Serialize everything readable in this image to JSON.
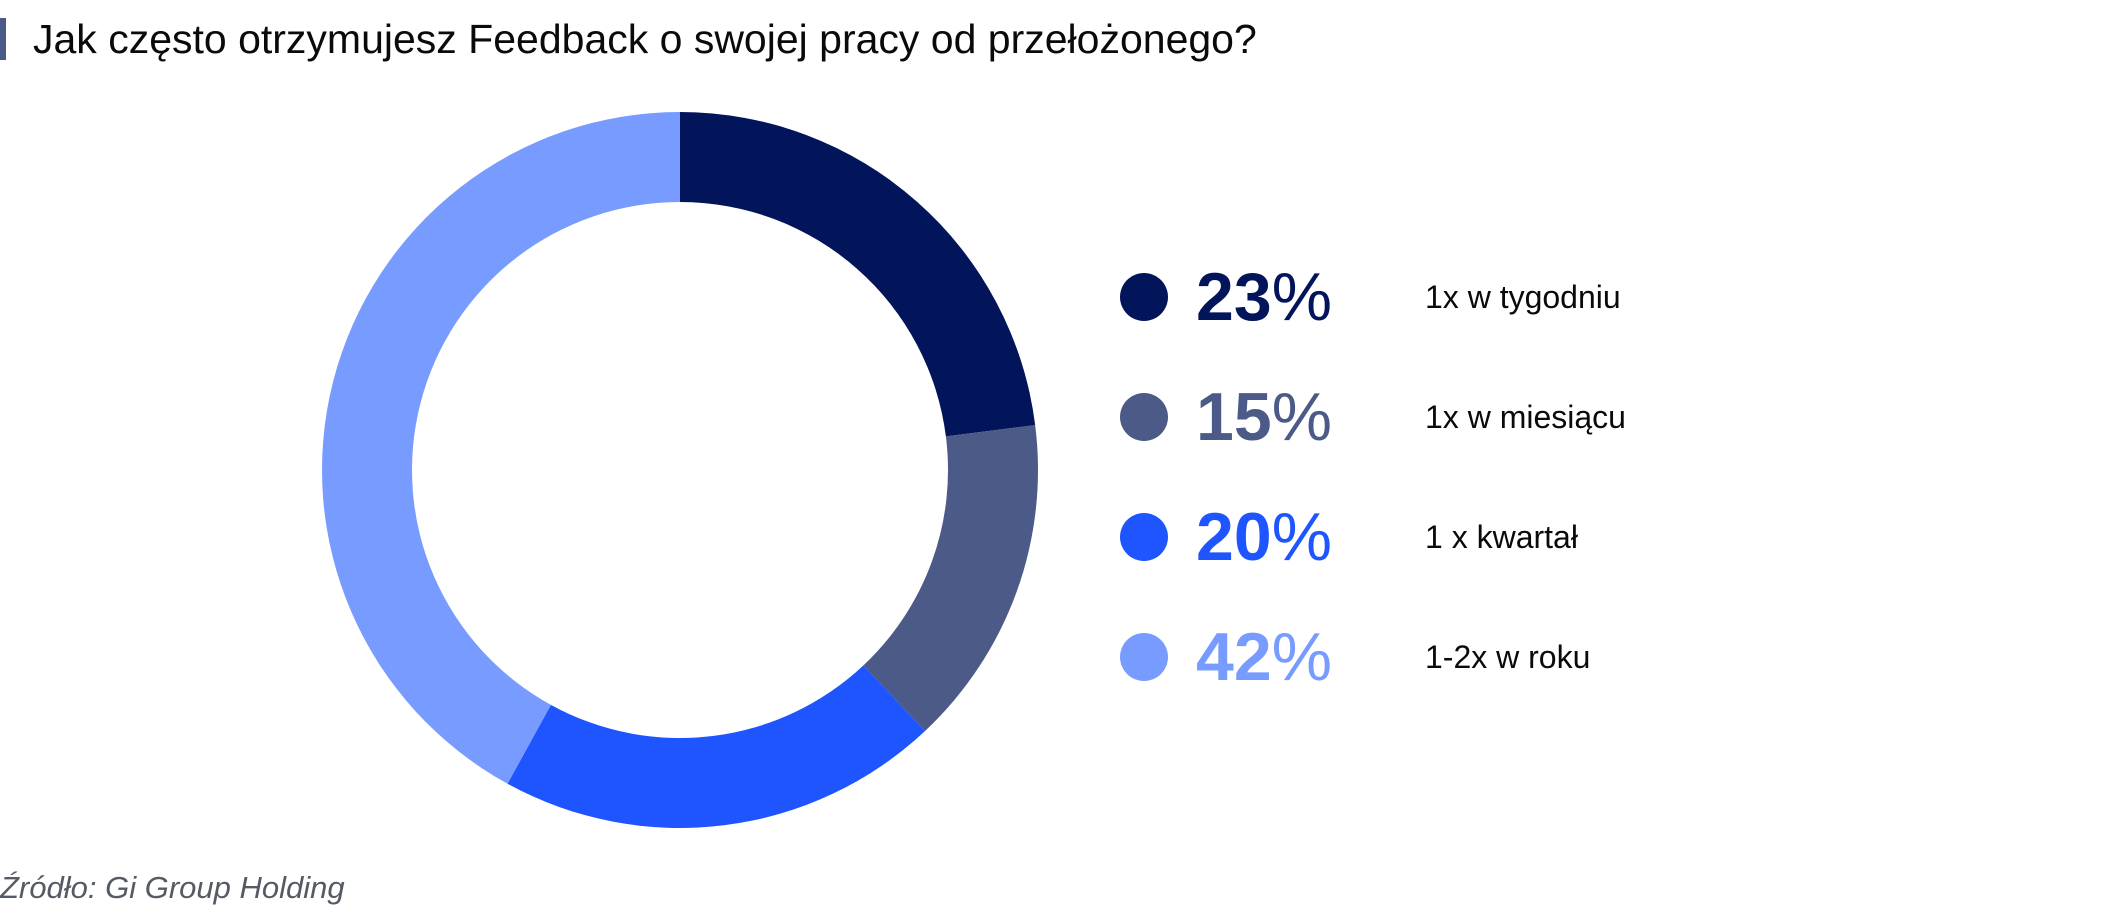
{
  "title": "Jak często otrzymujesz Feedback o swojej pracy od przełożonego?",
  "source": "Źródło: Gi Group Holding",
  "chart_data": {
    "type": "pie",
    "title": "Jak często otrzymujesz Feedback o swojej pracy od przełożonego?",
    "categories": [
      "1x w tygodniu",
      "1x w miesiącu",
      "1 x kwartał",
      "1-2x w roku"
    ],
    "values": [
      23,
      15,
      20,
      42
    ],
    "value_labels": [
      "23",
      "15",
      "20",
      "42"
    ],
    "unit": "%",
    "colors": [
      "#02145a",
      "#4b5a87",
      "#1f55ff",
      "#789bff"
    ],
    "legend_position": "right"
  }
}
